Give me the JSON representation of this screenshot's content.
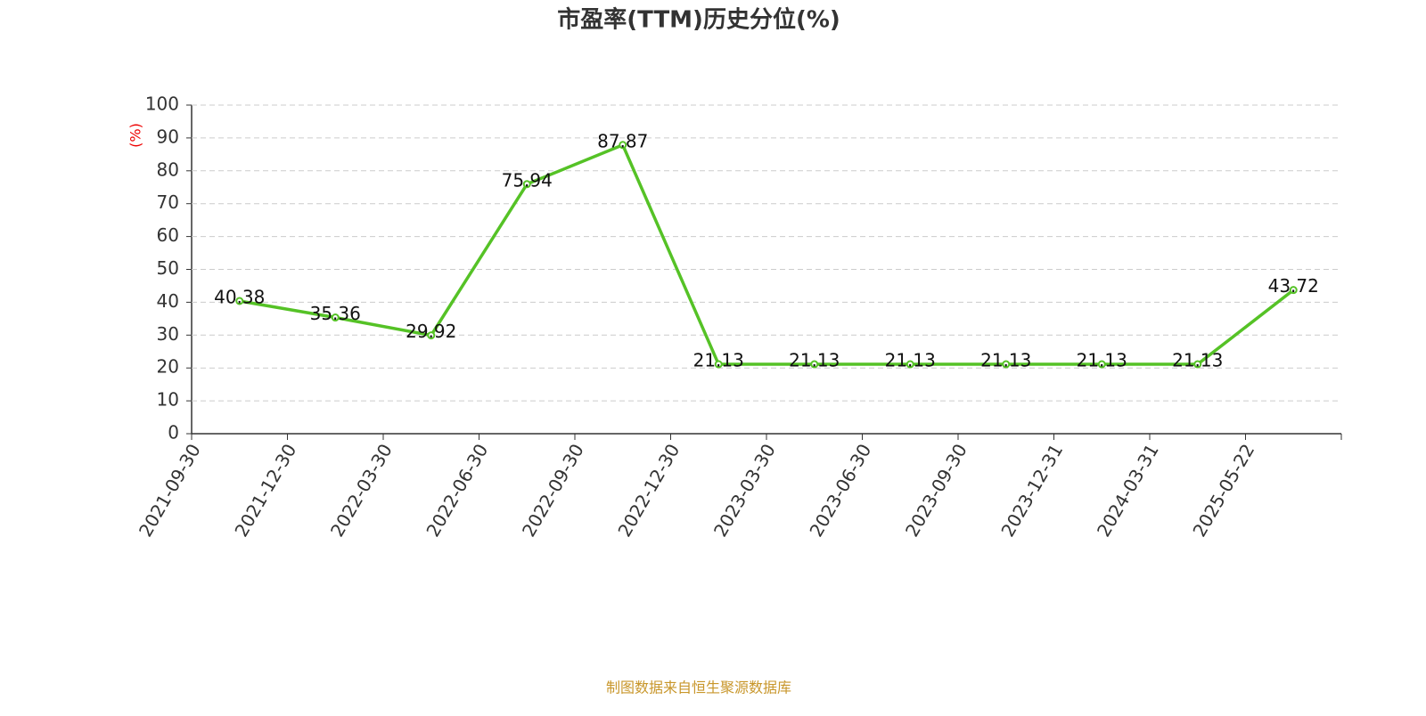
{
  "chart_data": {
    "type": "line",
    "title": "市盈率(TTM)历史分位(%)",
    "y_label": "(%)",
    "categories": [
      "2021-09-30",
      "2021-12-30",
      "2022-03-30",
      "2022-06-30",
      "2022-09-30",
      "2022-12-30",
      "2023-03-30",
      "2023-06-30",
      "2023-09-30",
      "2023-12-31",
      "2024-03-31",
      "2025-05-22"
    ],
    "series": [
      {
        "color": "#55c226",
        "values": [
          40.38,
          35.36,
          29.92,
          75.94,
          87.87,
          21.13,
          21.13,
          21.13,
          21.13,
          21.13,
          21.13,
          43.72
        ]
      }
    ],
    "ylim": [
      0,
      100
    ],
    "yticks": [
      0,
      10,
      20,
      30,
      40,
      50,
      60,
      70,
      80,
      90,
      100
    ],
    "grid": true,
    "source": "制图数据来自恒生聚源数据库"
  }
}
